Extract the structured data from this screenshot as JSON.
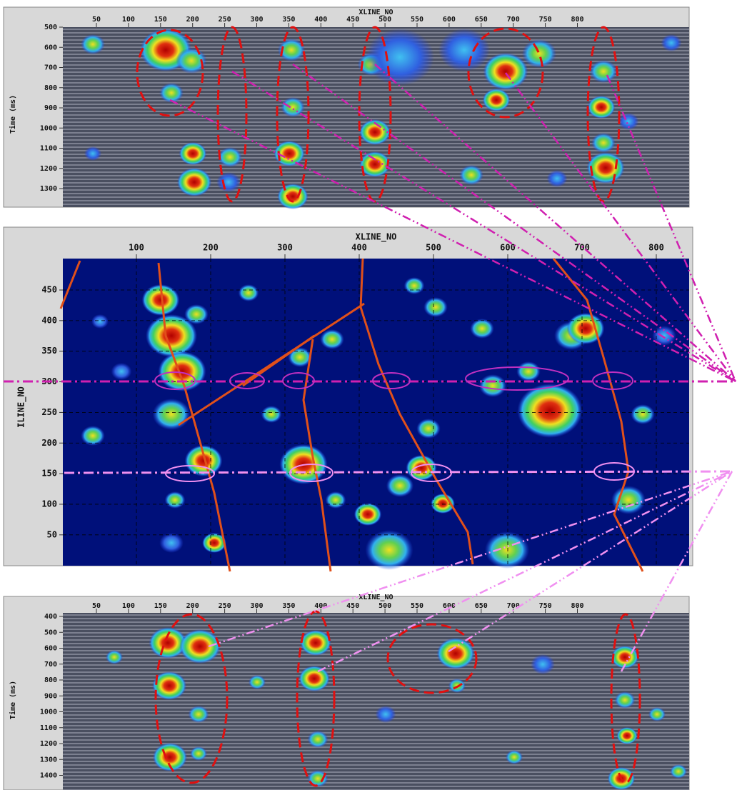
{
  "panels": [
    {
      "x_axis_title": "XLINE_NO",
      "y_axis_title": "Time (ms)",
      "x_tick_labels": [
        50,
        100,
        150,
        200,
        250,
        300,
        350,
        400,
        450,
        500,
        550,
        600,
        650,
        700,
        750,
        800
      ],
      "y_tick_labels": [
        500,
        600,
        700,
        800,
        900,
        1000,
        1100,
        1200,
        1300
      ]
    },
    {
      "x_axis_title": "XLINE_NO",
      "y_axis_title": "ILINE_NO",
      "x_tick_labels": [
        100,
        200,
        300,
        400,
        500,
        600,
        700,
        800
      ],
      "y_tick_labels": [
        450,
        400,
        350,
        300,
        250,
        200,
        150,
        100,
        50
      ]
    },
    {
      "x_axis_title": "XLINE_NO",
      "y_axis_title": "Time (ms)",
      "x_tick_labels": [
        50,
        100,
        150,
        200,
        250,
        300,
        350,
        400,
        450,
        500,
        550,
        600,
        650,
        700,
        750,
        800
      ],
      "y_tick_labels": [
        400,
        500,
        600,
        700,
        800,
        900,
        1000,
        1100,
        1200,
        1300,
        1400
      ]
    }
  ]
}
